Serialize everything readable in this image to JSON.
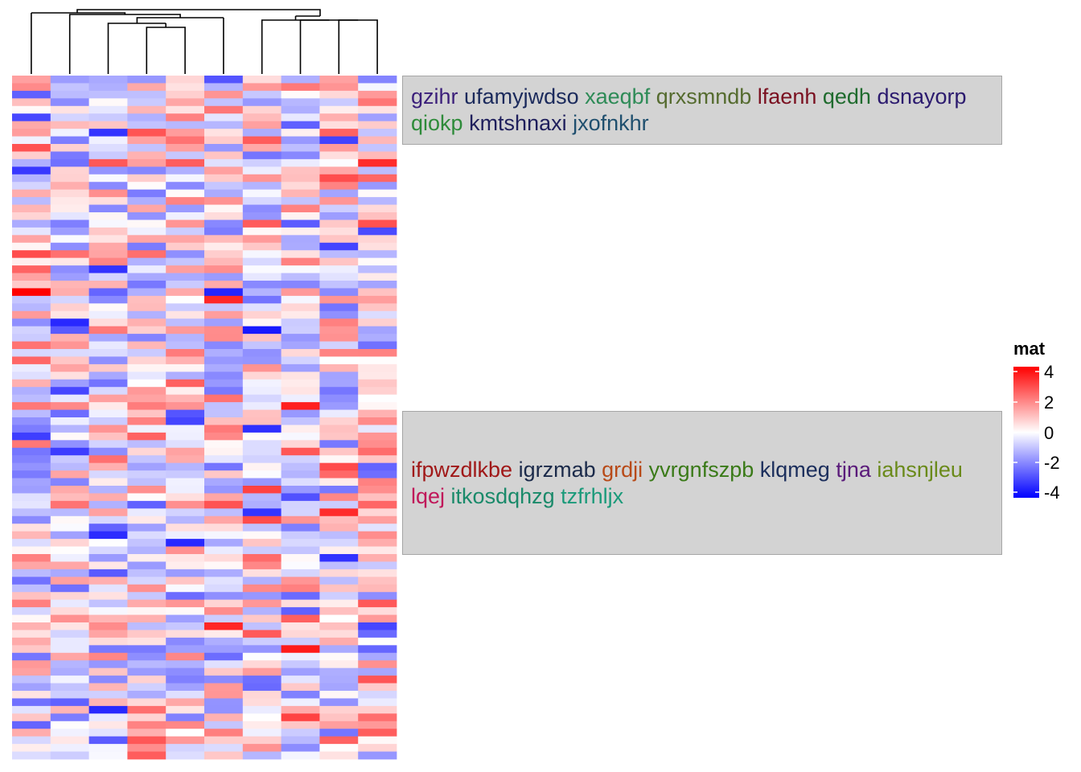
{
  "chart_data": {
    "type": "heatmap",
    "columns": 10,
    "rows": 90,
    "color_scale": {
      "min": -4,
      "mid": 0,
      "max": 4,
      "low": "#0000ff",
      "mid_color": "#ffffff",
      "high": "#ff0000"
    },
    "column_dendrogram": true,
    "legend": {
      "title": "mat",
      "ticks": [
        "4",
        "2",
        "0",
        "-2",
        "-4"
      ],
      "placement": "right"
    },
    "seed": 20240611
  },
  "text_annotations": [
    {
      "words": [
        {
          "text": "gzihr",
          "color": "#3b1f7a"
        },
        {
          "text": "ufamyjwdso",
          "color": "#1b2a5c"
        },
        {
          "text": "xaeqbf",
          "color": "#2e8b57"
        },
        {
          "text": "qrxsmndb",
          "color": "#556b2f"
        },
        {
          "text": "lfaenh",
          "color": "#7a1020"
        },
        {
          "text": "qedh",
          "color": "#1f6b2e"
        },
        {
          "text": "dsnayorp",
          "color": "#2b1a6e"
        },
        {
          "text": "qiokp",
          "color": "#2e8b3a"
        },
        {
          "text": "kmtshnaxi",
          "color": "#1f1f5c"
        },
        {
          "text": "jxofnkhr",
          "color": "#1f4f6e"
        }
      ]
    },
    {
      "words": [
        {
          "text": "ifpwzdlkbe",
          "color": "#a01818"
        },
        {
          "text": "igrzmab",
          "color": "#1b2a4a"
        },
        {
          "text": "grdji",
          "color": "#b84a18"
        },
        {
          "text": "yvrgnfszpb",
          "color": "#3a7a18"
        },
        {
          "text": "klqmeg",
          "color": "#1b2e5c"
        },
        {
          "text": "tjna",
          "color": "#5a1a7a"
        },
        {
          "text": "iahsnjleu",
          "color": "#6a8a1a"
        },
        {
          "text": "lqej",
          "color": "#c0185a"
        },
        {
          "text": "itkosdqhzg",
          "color": "#1a8a6a"
        },
        {
          "text": "tzfrhljx",
          "color": "#1a9a7a"
        }
      ]
    }
  ]
}
